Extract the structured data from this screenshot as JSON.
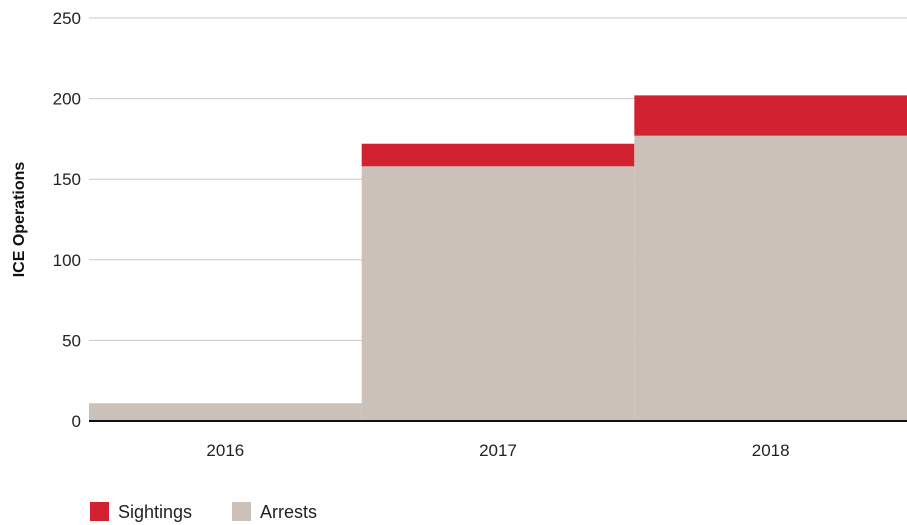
{
  "chart_data": {
    "type": "area",
    "categories": [
      "2016",
      "2017",
      "2018"
    ],
    "series": [
      {
        "name": "Arrests",
        "values": [
          11,
          158,
          177
        ],
        "color": "#ccc1b9"
      },
      {
        "name": "Sightings",
        "values": [
          0,
          14,
          25
        ],
        "color": "#d22232"
      }
    ],
    "stacked": true,
    "step": true,
    "title": "",
    "xlabel": "",
    "ylabel": "ICE Operations",
    "ylim": [
      0,
      250
    ],
    "yticks": [
      "0",
      "50",
      "100",
      "150",
      "200",
      "250"
    ],
    "grid": true,
    "legend_position": "bottom-left"
  }
}
